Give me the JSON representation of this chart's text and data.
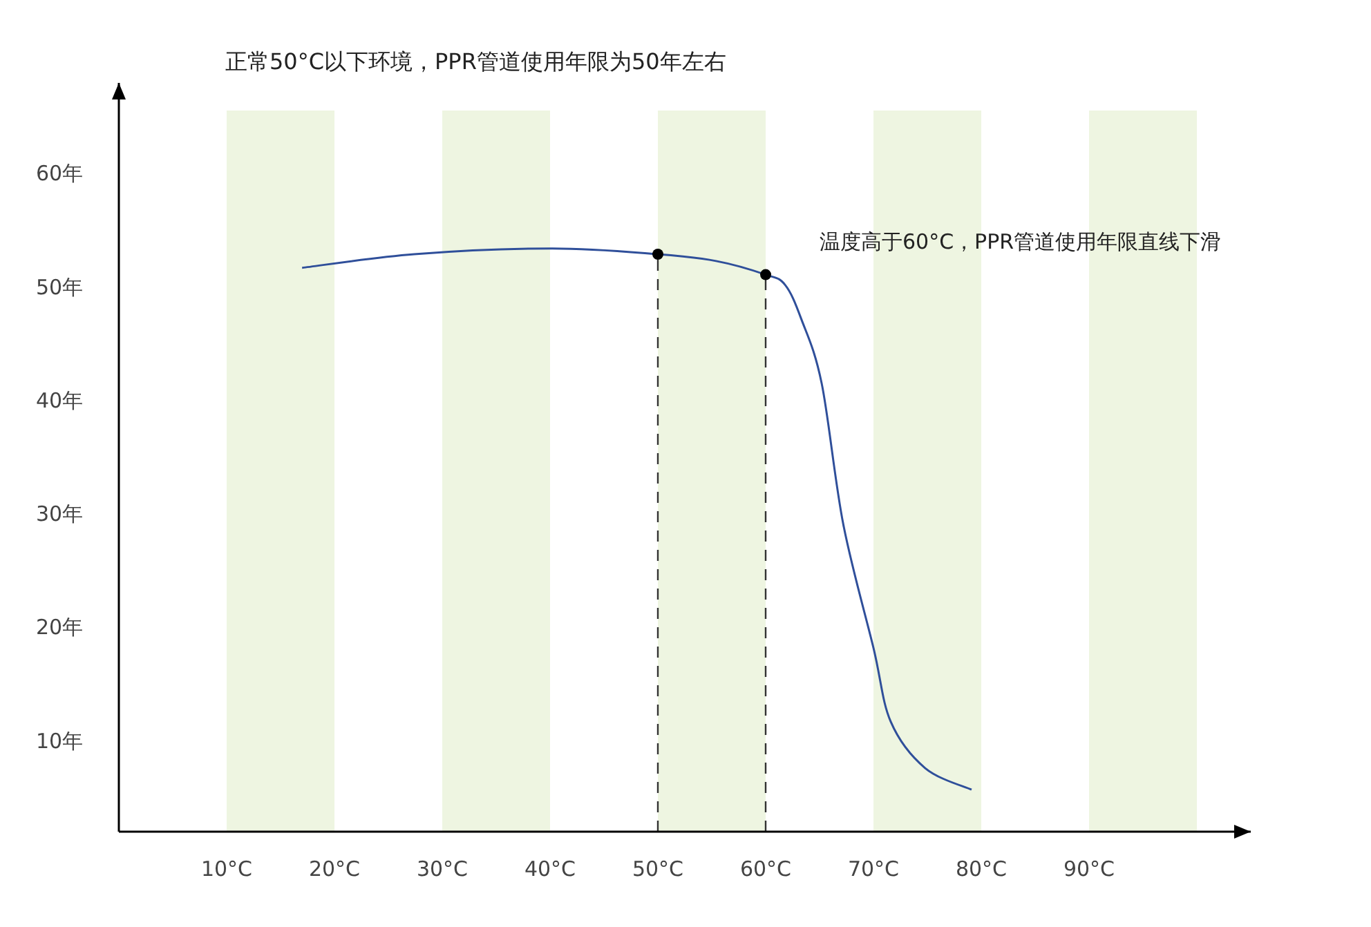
{
  "chart_data": {
    "type": "line",
    "title": "正常50°C以下环境，PPR管道使用年限为50年左右",
    "annotations": [
      "温度高于60°C，PPR管道使用年限直线下滑"
    ],
    "series": [
      {
        "color": "#2f4f9a",
        "x": [
          17,
          27.4,
          40.2,
          50,
          55.4,
          60,
          61.8,
          63.3,
          65.2,
          67.2,
          70.0,
          71.6,
          74.8,
          79.1
        ],
        "values": [
          51.7,
          52.9,
          53.4,
          52.9,
          52.3,
          51.1,
          50.2,
          47.2,
          41.5,
          29.1,
          18.2,
          11.7,
          7.6,
          5.7
        ]
      },
      {
        "type": "scatter",
        "color": "#000000",
        "x": [
          50,
          60
        ],
        "values": [
          52.9,
          51.1
        ]
      }
    ],
    "ref_lines": [
      {
        "axis": "x",
        "value": 50,
        "line_style": "dashed",
        "color": "#333333"
      },
      {
        "axis": "x",
        "value": 60,
        "line_style": "dashed",
        "color": "#333333"
      }
    ],
    "bands": [
      {
        "axis": "x",
        "from": 10,
        "to": 20,
        "color": "#eef5e1"
      },
      {
        "axis": "x",
        "from": 30,
        "to": 40,
        "color": "#eef5e1"
      },
      {
        "axis": "x",
        "from": 50,
        "to": 60,
        "color": "#eef5e1"
      },
      {
        "axis": "x",
        "from": 70,
        "to": 80,
        "color": "#eef5e1"
      },
      {
        "axis": "x",
        "from": 90,
        "to": 100,
        "color": "#eef5e1"
      }
    ],
    "xlim": [
      0,
      105
    ],
    "ylim": [
      2,
      68
    ],
    "xticks": [
      {
        "value": 10,
        "label": "10°C"
      },
      {
        "value": 20,
        "label": "20°C"
      },
      {
        "value": 30,
        "label": "30°C"
      },
      {
        "value": 40,
        "label": "40°C"
      },
      {
        "value": 50,
        "label": "50°C"
      },
      {
        "value": 60,
        "label": "60°C"
      },
      {
        "value": 70,
        "label": "70°C"
      },
      {
        "value": 80,
        "label": "80°C"
      },
      {
        "value": 90,
        "label": "90°C"
      }
    ],
    "yticks": [
      {
        "value": 10,
        "label": "10年"
      },
      {
        "value": 20,
        "label": "20年"
      },
      {
        "value": 30,
        "label": "30年"
      },
      {
        "value": 40,
        "label": "40年"
      },
      {
        "value": 50,
        "label": "50年"
      },
      {
        "value": 60,
        "label": "60年"
      }
    ],
    "grid": false
  }
}
